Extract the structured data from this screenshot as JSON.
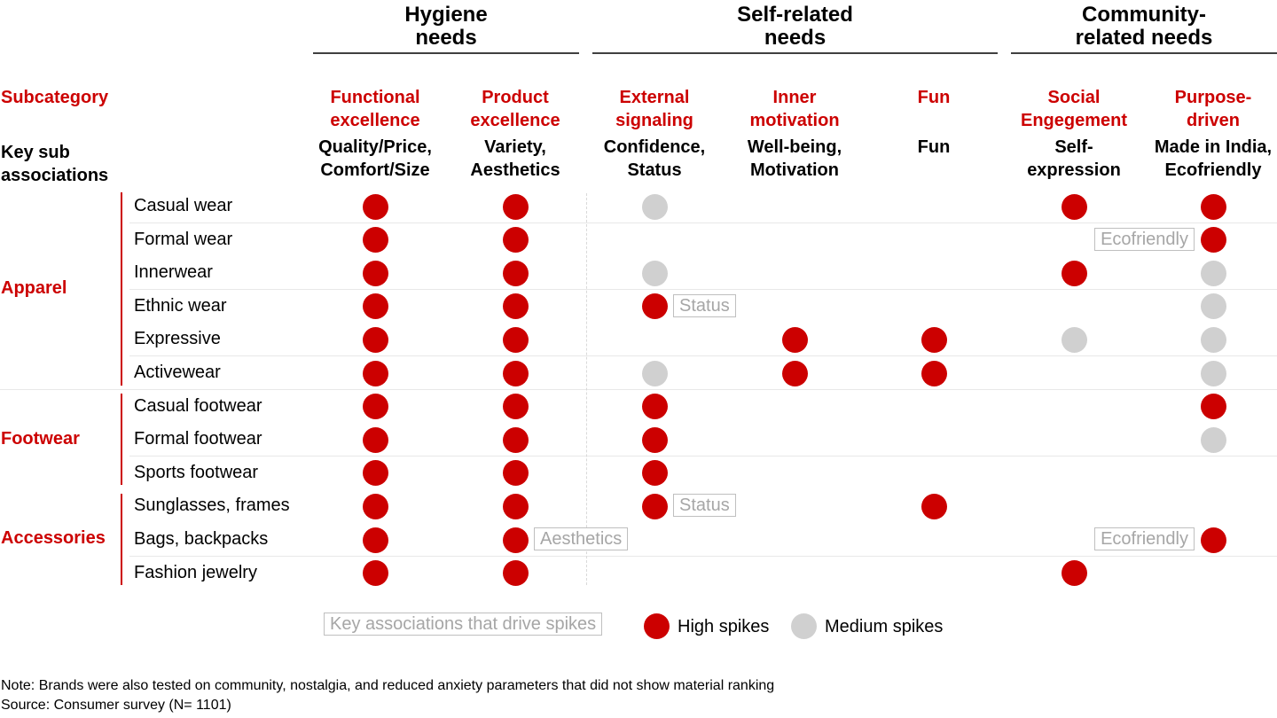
{
  "chart_data": {
    "type": "table",
    "title": "",
    "colors": {
      "high": "#cc0000",
      "medium": "#d0d0d0",
      "category": "#cc0000"
    },
    "groups": [
      {
        "label": "Hygiene needs",
        "line1": "Hygiene",
        "line2": "needs",
        "columns": [
          0,
          1
        ]
      },
      {
        "label": "Self-related needs",
        "line1": "Self-related",
        "line2": "needs",
        "columns": [
          2,
          3,
          4
        ]
      },
      {
        "label": "Community-related needs",
        "line1": "Community-",
        "line2": "related needs",
        "columns": [
          5,
          6
        ]
      }
    ],
    "row_header_labels": {
      "subcategory": "Subcategory",
      "key_sub_1": "Key sub",
      "key_sub_2": "associations"
    },
    "columns": [
      {
        "subcategory_1": "Functional",
        "subcategory_2": "excellence",
        "assoc_1": "Quality/Price,",
        "assoc_2": "Comfort/Size"
      },
      {
        "subcategory_1": "Product",
        "subcategory_2": "excellence",
        "assoc_1": "Variety,",
        "assoc_2": "Aesthetics"
      },
      {
        "subcategory_1": "External",
        "subcategory_2": "signaling",
        "assoc_1": "Confidence,",
        "assoc_2": "Status"
      },
      {
        "subcategory_1": "Inner",
        "subcategory_2": "motivation",
        "assoc_1": "Well-being,",
        "assoc_2": "Motivation"
      },
      {
        "subcategory_1": "Fun",
        "subcategory_2": "",
        "assoc_1": "Fun",
        "assoc_2": ""
      },
      {
        "subcategory_1": "Social",
        "subcategory_2": "Engegement",
        "assoc_1": "Self-",
        "assoc_2": "expression"
      },
      {
        "subcategory_1": "Purpose-",
        "subcategory_2": "driven",
        "assoc_1": "Made in India,",
        "assoc_2": "Ecofriendly"
      }
    ],
    "categories": [
      {
        "label": "Apparel",
        "rows": [
          0,
          1,
          2,
          3,
          4,
          5
        ]
      },
      {
        "label": "Footwear",
        "rows": [
          6,
          7,
          8
        ]
      },
      {
        "label": "Accessories",
        "rows": [
          9,
          10,
          11
        ]
      }
    ],
    "rows": [
      {
        "label": "Casual wear",
        "values": [
          "high",
          "high",
          "medium",
          null,
          null,
          "high",
          "high"
        ]
      },
      {
        "label": "Formal wear",
        "values": [
          "high",
          "high",
          null,
          null,
          null,
          null,
          "high"
        ]
      },
      {
        "label": "Innerwear",
        "values": [
          "high",
          "high",
          "medium",
          null,
          null,
          "high",
          "medium"
        ]
      },
      {
        "label": "Ethnic wear",
        "values": [
          "high",
          "high",
          "high",
          null,
          null,
          null,
          "medium"
        ]
      },
      {
        "label": "Expressive",
        "values": [
          "high",
          "high",
          null,
          "high",
          "high",
          "medium",
          "medium"
        ]
      },
      {
        "label": "Activewear",
        "values": [
          "high",
          "high",
          "medium",
          "high",
          "high",
          null,
          "medium"
        ]
      },
      {
        "label": "Casual footwear",
        "values": [
          "high",
          "high",
          "high",
          null,
          null,
          null,
          "high"
        ]
      },
      {
        "label": "Formal footwear",
        "values": [
          "high",
          "high",
          "high",
          null,
          null,
          null,
          "medium"
        ]
      },
      {
        "label": "Sports footwear",
        "values": [
          "high",
          "high",
          "high",
          null,
          null,
          null,
          null
        ]
      },
      {
        "label": "Sunglasses, frames",
        "values": [
          "high",
          "high",
          "high",
          null,
          "high",
          null,
          null
        ]
      },
      {
        "label": "Bags, backpacks",
        "values": [
          "high",
          "high",
          null,
          null,
          null,
          null,
          "high"
        ]
      },
      {
        "label": "Fashion jewelry",
        "values": [
          "high",
          "high",
          null,
          null,
          null,
          "high",
          null
        ]
      }
    ],
    "annotations": [
      {
        "row": 1,
        "column": 6,
        "text": "Ecofriendly",
        "side": "left"
      },
      {
        "row": 3,
        "column": 2,
        "text": "Status",
        "side": "right"
      },
      {
        "row": 9,
        "column": 2,
        "text": "Status",
        "side": "right"
      },
      {
        "row": 10,
        "column": 1,
        "text": "Aesthetics",
        "side": "right"
      },
      {
        "row": 10,
        "column": 6,
        "text": "Ecofriendly",
        "side": "left"
      }
    ],
    "legend": {
      "position": "bottom-center",
      "box_label": "Key associations that drive spikes",
      "high_label": "High spikes",
      "medium_label": "Medium spikes"
    }
  },
  "notes": {
    "note": "Note: Brands were also tested on community, nostalgia, and reduced anxiety parameters that did not show material ranking",
    "source": "Source: Consumer survey (N= 1101)"
  }
}
